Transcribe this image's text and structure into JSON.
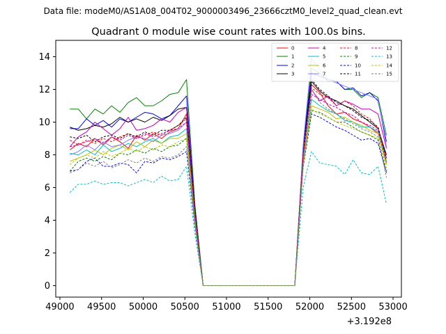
{
  "chart_data": {
    "type": "line",
    "header": "Data file: modeM0/AS1A08_004T02_9000003496_23666cztM0_level2_quad_clean.evt",
    "title": "Quadrant 0 module wise count rates with 100.0s bins.",
    "xlabel": "",
    "ylabel": "",
    "offset_label": "+3.192e8",
    "xlim": [
      48950,
      53100
    ],
    "ylim": [
      -0.7,
      15.0
    ],
    "x_ticks": [
      49000,
      49500,
      50000,
      50500,
      51000,
      51500,
      52000,
      52500,
      53000
    ],
    "x_tick_labels": [
      "49000",
      "49500",
      "50000",
      "50500",
      "51000",
      "51500",
      "52000",
      "52500",
      "53000"
    ],
    "y_ticks": [
      0,
      2,
      4,
      6,
      8,
      10,
      12,
      14
    ],
    "y_tick_labels": [
      "0",
      "2",
      "4",
      "6",
      "8",
      "10",
      "12",
      "14"
    ],
    "legend_position": "top-right",
    "x": [
      49120,
      49220,
      49320,
      49420,
      49520,
      49620,
      49720,
      49820,
      49920,
      50020,
      50120,
      50220,
      50320,
      50420,
      50520,
      50620,
      50720,
      50820,
      50920,
      51020,
      51120,
      51220,
      51320,
      51420,
      51520,
      51620,
      51720,
      51820,
      51920,
      52020,
      52120,
      52220,
      52320,
      52420,
      52520,
      52620,
      52720,
      52820,
      52920
    ],
    "series": [
      {
        "name": "0",
        "color": "#ff0000",
        "dash": false,
        "values": [
          8.3,
          8.7,
          8.5,
          9.0,
          8.6,
          9.1,
          8.8,
          8.4,
          9.2,
          8.9,
          9.3,
          9.0,
          9.4,
          9.6,
          10.5,
          4.5,
          0,
          0,
          0,
          0,
          0,
          0,
          0,
          0,
          0,
          0,
          0,
          0,
          8.0,
          12.3,
          11.8,
          11.0,
          10.5,
          10.6,
          10.2,
          10.0,
          9.7,
          9.3,
          7.5
        ]
      },
      {
        "name": "1",
        "color": "#008000",
        "dash": false,
        "values": [
          10.8,
          10.8,
          10.2,
          10.8,
          10.5,
          11.0,
          10.6,
          11.2,
          11.5,
          11.0,
          11.0,
          11.3,
          11.7,
          11.8,
          12.6,
          5.0,
          0,
          0,
          0,
          0,
          0,
          0,
          0,
          0,
          0,
          0,
          0,
          0,
          8.5,
          13.3,
          13.0,
          12.5,
          12.5,
          12.0,
          12.0,
          11.5,
          11.8,
          11.5,
          9.2
        ]
      },
      {
        "name": "2",
        "color": "#0000ff",
        "dash": false,
        "values": [
          9.6,
          9.6,
          10.2,
          9.8,
          10.1,
          9.7,
          10.2,
          10.0,
          10.3,
          10.6,
          10.5,
          10.2,
          10.4,
          11.0,
          11.6,
          4.7,
          0,
          0,
          0,
          0,
          0,
          0,
          0,
          0,
          0,
          0,
          0,
          0,
          8.4,
          13.0,
          12.8,
          12.6,
          12.5,
          12.0,
          12.1,
          11.6,
          11.8,
          11.3,
          8.8
        ]
      },
      {
        "name": "3",
        "color": "#000000",
        "dash": false,
        "values": [
          9.7,
          9.5,
          9.6,
          9.8,
          9.7,
          9.9,
          10.3,
          10.0,
          10.2,
          10.0,
          10.3,
          10.1,
          10.4,
          10.8,
          10.9,
          4.6,
          0,
          0,
          0,
          0,
          0,
          0,
          0,
          0,
          0,
          0,
          0,
          0,
          8.2,
          12.5,
          11.9,
          11.5,
          11.3,
          11.0,
          10.8,
          10.4,
          10.0,
          9.6,
          8.0
        ]
      },
      {
        "name": "4",
        "color": "#bf00bf",
        "dash": false,
        "values": [
          8.5,
          9.1,
          9.4,
          10.0,
          9.6,
          9.2,
          9.6,
          10.3,
          9.5,
          9.6,
          9.8,
          10.2,
          10.0,
          10.6,
          10.9,
          4.5,
          0,
          0,
          0,
          0,
          0,
          0,
          0,
          0,
          0,
          0,
          0,
          0,
          8.3,
          12.0,
          11.3,
          11.6,
          11.0,
          11.3,
          11.1,
          10.8,
          10.8,
          10.5,
          8.4
        ]
      },
      {
        "name": "5",
        "color": "#00bfbf",
        "dash": false,
        "values": [
          8.1,
          8.0,
          8.3,
          8.0,
          8.6,
          8.2,
          8.4,
          8.7,
          8.5,
          8.8,
          9.0,
          8.7,
          9.1,
          9.2,
          9.6,
          4.2,
          0,
          0,
          0,
          0,
          0,
          0,
          0,
          0,
          0,
          0,
          0,
          0,
          7.7,
          11.4,
          11.0,
          10.7,
          10.5,
          10.1,
          10.0,
          9.7,
          9.7,
          9.4,
          7.6
        ]
      },
      {
        "name": "6",
        "color": "#bfbf00",
        "dash": false,
        "values": [
          7.6,
          7.8,
          8.0,
          8.3,
          8.0,
          8.4,
          8.6,
          8.3,
          8.8,
          8.5,
          8.9,
          8.7,
          9.0,
          9.0,
          9.3,
          4.0,
          0,
          0,
          0,
          0,
          0,
          0,
          0,
          0,
          0,
          0,
          0,
          0,
          7.6,
          11.0,
          10.8,
          10.6,
          10.2,
          10.3,
          10.0,
          9.8,
          9.5,
          9.3,
          7.4
        ]
      },
      {
        "name": "7",
        "color": "#7f7fff",
        "dash": false,
        "values": [
          8.0,
          8.2,
          8.6,
          8.3,
          8.8,
          8.5,
          8.6,
          8.9,
          9.1,
          9.0,
          8.8,
          9.2,
          9.3,
          9.5,
          10.0,
          4.4,
          0,
          0,
          0,
          0,
          0,
          0,
          0,
          0,
          0,
          0,
          0,
          0,
          8.6,
          13.9,
          13.2,
          12.6,
          12.4,
          12.2,
          12.0,
          11.8,
          11.6,
          11.4,
          8.5
        ]
      },
      {
        "name": "8",
        "color": "#ff0000",
        "dash": true,
        "values": [
          8.9,
          8.6,
          8.9,
          8.7,
          9.0,
          8.8,
          9.1,
          9.3,
          9.0,
          9.2,
          9.4,
          9.2,
          9.5,
          9.8,
          10.2,
          4.5,
          0,
          0,
          0,
          0,
          0,
          0,
          0,
          0,
          0,
          0,
          0,
          0,
          8.1,
          12.1,
          11.7,
          11.5,
          11.0,
          11.3,
          11.0,
          10.5,
          10.2,
          9.6,
          7.8
        ]
      },
      {
        "name": "9",
        "color": "#008000",
        "dash": true,
        "values": [
          7.0,
          7.6,
          7.8,
          7.6,
          7.9,
          7.7,
          8.1,
          8.0,
          8.3,
          8.1,
          8.4,
          8.2,
          8.5,
          8.6,
          9.0,
          3.9,
          0,
          0,
          0,
          0,
          0,
          0,
          0,
          0,
          0,
          0,
          0,
          0,
          7.4,
          10.7,
          10.6,
          10.3,
          10.0,
          10.0,
          9.7,
          9.4,
          9.2,
          8.9,
          7.0
        ]
      },
      {
        "name": "10",
        "color": "#0000ff",
        "dash": true,
        "values": [
          7.0,
          7.1,
          7.6,
          7.8,
          7.3,
          7.3,
          7.5,
          7.4,
          6.9,
          7.6,
          7.5,
          7.8,
          7.7,
          7.9,
          8.2,
          3.7,
          0,
          0,
          0,
          0,
          0,
          0,
          0,
          0,
          0,
          0,
          0,
          0,
          7.2,
          10.5,
          10.3,
          10.0,
          9.7,
          9.5,
          9.2,
          8.9,
          9.0,
          8.7,
          6.9
        ]
      },
      {
        "name": "11",
        "color": "#000000",
        "dash": true,
        "values": [
          9.1,
          9.0,
          9.2,
          8.8,
          9.1,
          9.2,
          9.0,
          9.3,
          9.1,
          9.4,
          9.2,
          9.5,
          9.5,
          9.8,
          10.3,
          4.6,
          0,
          0,
          0,
          0,
          0,
          0,
          0,
          0,
          0,
          0,
          0,
          0,
          8.0,
          12.6,
          12.0,
          11.6,
          11.2,
          11.0,
          10.7,
          10.3,
          10.1,
          9.7,
          7.8
        ]
      },
      {
        "name": "12",
        "color": "#bf00bf",
        "dash": true,
        "values": [
          8.5,
          8.6,
          8.8,
          9.0,
          8.7,
          9.1,
          8.9,
          9.2,
          9.0,
          9.3,
          9.1,
          9.3,
          9.5,
          9.6,
          10.0,
          4.4,
          0,
          0,
          0,
          0,
          0,
          0,
          0,
          0,
          0,
          0,
          0,
          0,
          7.9,
          11.7,
          11.4,
          11.1,
          10.9,
          10.6,
          10.4,
          10.0,
          9.8,
          9.5,
          7.6
        ]
      },
      {
        "name": "13",
        "color": "#00bfbf",
        "dash": true,
        "values": [
          5.7,
          6.2,
          6.2,
          6.4,
          6.2,
          6.3,
          6.3,
          6.1,
          6.3,
          6.5,
          6.3,
          6.7,
          6.4,
          6.5,
          7.3,
          3.2,
          0,
          0,
          0,
          0,
          0,
          0,
          0,
          0,
          0,
          0,
          0,
          0,
          6.0,
          8.2,
          7.5,
          7.4,
          7.3,
          6.8,
          7.7,
          6.9,
          6.8,
          7.3,
          5.0
        ]
      },
      {
        "name": "14",
        "color": "#bfbf00",
        "dash": true,
        "values": [
          7.4,
          7.8,
          8.0,
          7.8,
          8.2,
          7.9,
          8.1,
          8.4,
          8.2,
          8.5,
          8.3,
          8.6,
          8.5,
          8.8,
          9.0,
          4.0,
          0,
          0,
          0,
          0,
          0,
          0,
          0,
          0,
          0,
          0,
          0,
          0,
          7.3,
          10.8,
          10.5,
          10.3,
          10.0,
          9.8,
          9.6,
          9.4,
          9.2,
          9.0,
          7.2
        ]
      },
      {
        "name": "15",
        "color": "#7f7f7f",
        "dash": true,
        "values": [
          6.9,
          7.1,
          7.5,
          7.3,
          7.6,
          7.2,
          7.4,
          7.7,
          7.5,
          7.8,
          7.6,
          7.9,
          7.8,
          8.0,
          8.5,
          3.8,
          0,
          0,
          0,
          0,
          0,
          0,
          0,
          0,
          0,
          0,
          0,
          0,
          7.5,
          12.0,
          11.2,
          10.8,
          10.5,
          10.2,
          9.9,
          9.6,
          9.4,
          9.1,
          6.6
        ]
      }
    ]
  }
}
